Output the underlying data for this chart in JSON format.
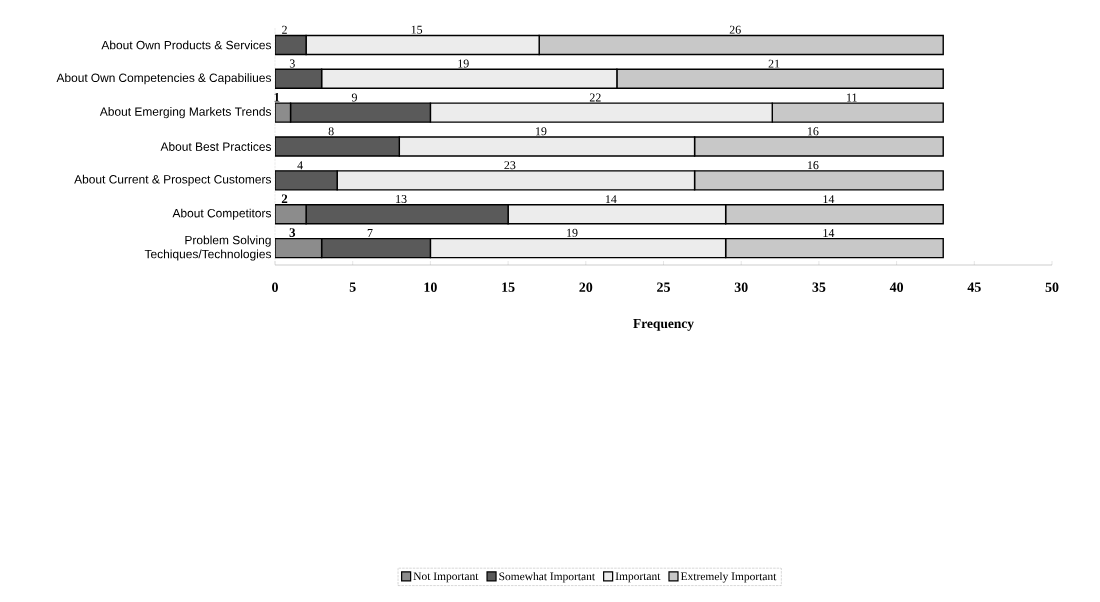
{
  "chart_data": {
    "type": "bar",
    "orientation": "horizontal",
    "stacked": true,
    "xlabel": "Frequency",
    "categories": [
      "About Own Products & Services",
      "About Own Competencies & Capabiliues",
      "About Emerging Markets Trends",
      "About Best Practices",
      "About Current & Prospect Customers",
      "About Competitors",
      "Problem Solving Techiques/Technologies"
    ],
    "series": [
      {
        "name": "Not Important",
        "color": "#8c8c8c",
        "values": [
          null,
          null,
          1,
          null,
          null,
          2,
          3
        ]
      },
      {
        "name": "Somewhat Important",
        "color": "#5a5a5a",
        "values": [
          2,
          3,
          9,
          8,
          4,
          13,
          7
        ]
      },
      {
        "name": "Important",
        "color": "#ececec",
        "values": [
          15,
          19,
          22,
          19,
          23,
          14,
          19
        ]
      },
      {
        "name": "Extremely Important",
        "color": "#c8c8c8",
        "values": [
          26,
          21,
          11,
          16,
          16,
          14,
          14
        ]
      }
    ],
    "xlim": [
      0,
      50
    ],
    "xticks": [
      0,
      5,
      10,
      15,
      20,
      25,
      30,
      35,
      40,
      45,
      50
    ],
    "data_labels": true,
    "legend": "bottom",
    "grid": false
  }
}
